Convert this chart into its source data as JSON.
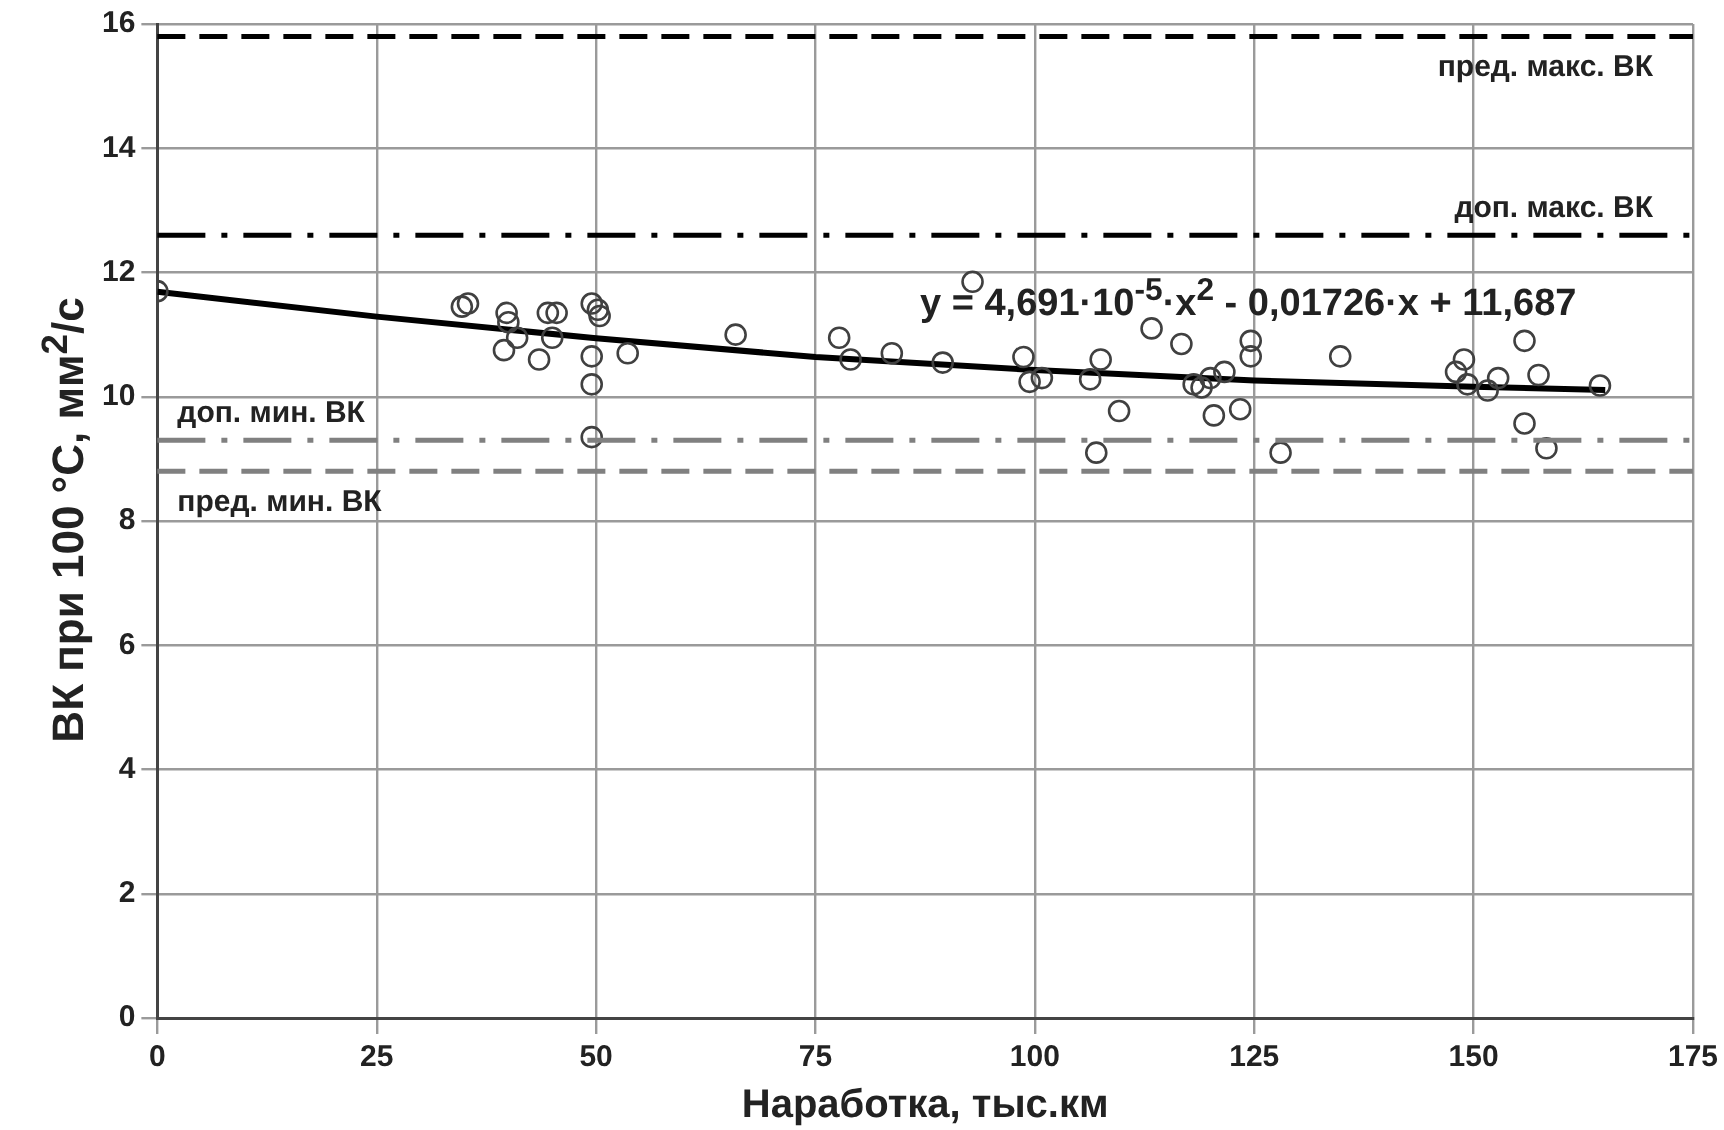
{
  "chart_data": {
    "type": "scatter",
    "xlabel": "Наработка, тыс.км",
    "ylabel": "ВК при 100 °С, мм$^{2}$/с",
    "xlim": [
      0,
      175
    ],
    "xticks": [
      0,
      25,
      50,
      75,
      100,
      125,
      150,
      175
    ],
    "ylim": [
      0,
      16
    ],
    "yticks": [
      0,
      2,
      4,
      6,
      8,
      10,
      12,
      14,
      16
    ],
    "grid": true,
    "legend": false,
    "marker": "circle",
    "series": [
      {
        "color": "#404040",
        "x": [
          0,
          34.7,
          35.4,
          39.8,
          40,
          41,
          39.5,
          43.5,
          45,
          44.5,
          45.5,
          49.5,
          50.2,
          50.4,
          49.5,
          49.5,
          49.5,
          53.6,
          65.9,
          77.7,
          79,
          83.7,
          89.5,
          92.9,
          98.7,
          99.4,
          100.8,
          106.3,
          107.5,
          109.6,
          107,
          113.3,
          116.7,
          118.1,
          119,
          120,
          120.4,
          121.6,
          123.4,
          124.6,
          124.6,
          128,
          134.8,
          148,
          148.9,
          149.3,
          151.6,
          152.8,
          155.8,
          155.8,
          157.4,
          158.3,
          164.4
        ],
        "values": [
          11.7,
          11.45,
          11.5,
          11.35,
          11.2,
          10.95,
          10.75,
          10.6,
          10.95,
          11.35,
          11.35,
          11.5,
          11.4,
          11.3,
          10.65,
          10.2,
          9.35,
          10.7,
          11.0,
          10.95,
          10.6,
          10.7,
          10.55,
          11.85,
          10.64,
          10.24,
          10.3,
          10.28,
          10.6,
          9.77,
          9.1,
          11.1,
          10.85,
          10.2,
          10.15,
          10.3,
          9.7,
          10.4,
          9.8,
          10.9,
          10.65,
          9.1,
          10.65,
          10.4,
          10.6,
          10.2,
          10.1,
          10.3,
          10.9,
          9.57,
          10.35,
          9.17,
          10.18
        ]
      },
      {
        "type": "line",
        "color": "#000000",
        "marker": "none",
        "x": [
          0,
          25,
          50,
          75,
          100,
          125,
          150,
          165
        ],
        "values": [
          11.69,
          11.29,
          10.94,
          10.64,
          10.43,
          10.26,
          10.16,
          10.11
        ]
      }
    ],
    "ref_lines": [
      {
        "axis": "y",
        "value": 15.8,
        "label": "пред. макс. ВК",
        "color": "#000000",
        "line_style": "dashed"
      },
      {
        "axis": "y",
        "value": 12.6,
        "label": "доп. макс. ВК",
        "color": "#000000",
        "line_style": "dashdot"
      },
      {
        "axis": "y",
        "value": 9.3,
        "label": "доп. мин. ВК",
        "color": "#808080",
        "line_style": "dashdot"
      },
      {
        "axis": "y",
        "value": 8.8,
        "label": "пред. мин. ВК",
        "color": "#808080",
        "line_style": "dashed"
      }
    ],
    "annotations": [
      "y = 4,691·10$^{-5}$·x$^{2}$ - 0,01726·x + 11,687"
    ]
  }
}
